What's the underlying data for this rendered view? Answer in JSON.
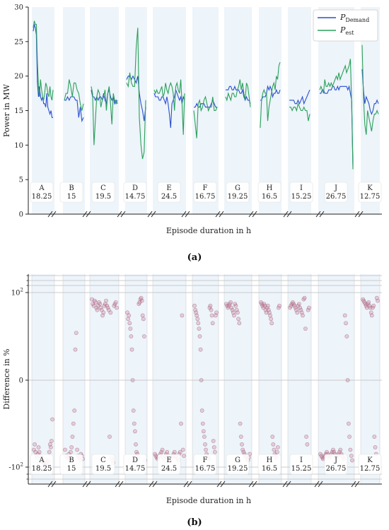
{
  "chart_data": [
    {
      "panel_label": "(a)",
      "type": "line",
      "xlabel": "Episode duration in h",
      "ylabel": "Power in MW",
      "ylim": [
        0,
        30
      ],
      "yticks": [
        "0",
        "5",
        "10",
        "15",
        "20",
        "25",
        "30"
      ],
      "legend_position": "top-right",
      "legend": [
        {
          "name_main": "P",
          "name_sub": "Demand",
          "color": "#2a4fcf"
        },
        {
          "name_main": "P",
          "name_sub": "est",
          "color": "#2ca05a"
        }
      ],
      "episodes": [
        {
          "label": "A",
          "duration": "18.25",
          "demand": [
            26.5,
            27.5,
            27,
            26,
            19,
            17,
            18.5,
            17,
            16.5,
            17,
            16,
            16,
            15.5,
            17.5,
            15.5,
            15,
            14.5,
            15,
            14,
            14
          ],
          "estimate": [
            27,
            28,
            27.5,
            27.5,
            22,
            18.5,
            17,
            19.5,
            18,
            17,
            16.5,
            17.5,
            19,
            18.5,
            17.5,
            17,
            18.5,
            17,
            16.5,
            18
          ]
        },
        {
          "label": "B",
          "duration": "15",
          "demand": [
            16.5,
            16.5,
            17,
            16.5,
            17,
            17,
            17,
            16.5,
            16.5,
            14,
            15.5,
            13.5,
            14
          ],
          "estimate": [
            16.5,
            17.5,
            17.5,
            19.5,
            18.5,
            17,
            19,
            19,
            18,
            17.5,
            16,
            15,
            16
          ]
        },
        {
          "label": "C",
          "duration": "19.5",
          "demand": [
            18,
            17,
            17,
            16.5,
            17,
            16.5,
            17,
            17,
            16.5,
            17.5,
            16.5,
            16,
            17.5,
            18,
            17,
            16.5,
            17,
            16,
            16.5,
            16
          ],
          "estimate": [
            18.5,
            17.5,
            10,
            13.5,
            17,
            18,
            17.5,
            15.5,
            16.5,
            17,
            18,
            15,
            17.5,
            18.5,
            16,
            13,
            17.5,
            16.5,
            16,
            16.5
          ]
        },
        {
          "label": "D",
          "duration": "14.75",
          "demand": [
            19.5,
            20,
            20,
            19.5,
            20,
            19.5,
            19,
            20,
            17.5,
            16,
            15,
            13.5,
            15.5
          ],
          "estimate": [
            19,
            18.5,
            20.5,
            19,
            18.5,
            18.5,
            24,
            27,
            14,
            10,
            8,
            9,
            16.5
          ]
        },
        {
          "label": "E",
          "duration": "24.5",
          "demand": [
            17.5,
            17,
            17,
            17,
            16.5,
            16.5,
            17,
            17,
            16.5,
            16,
            17,
            16,
            14.5,
            12.5,
            16,
            16.5,
            17,
            18,
            17.5,
            17,
            16.5,
            17,
            16,
            17,
            16.5
          ],
          "estimate": [
            18,
            17.5,
            18,
            17.5,
            17.5,
            18,
            18.5,
            17,
            17.5,
            19,
            18,
            17.5,
            18.5,
            19,
            18.5,
            17.5,
            15,
            18.5,
            19,
            18,
            17.5,
            19.5,
            16,
            11.5,
            17.5
          ]
        },
        {
          "label": "F",
          "duration": "16.75",
          "demand": [
            15.5,
            15.5,
            16,
            15.5,
            15.5,
            16,
            16,
            16,
            15.5,
            15.5,
            15.5,
            15.5,
            16,
            16.5,
            16,
            15.5,
            15.5
          ],
          "estimate": [
            15,
            13,
            11,
            16,
            16.5,
            15,
            15.5,
            16.5,
            17,
            16,
            15,
            15.5,
            15.5,
            17,
            15,
            15,
            15.5
          ]
        },
        {
          "label": "G",
          "duration": "19.25",
          "demand": [
            18,
            18,
            18,
            18.5,
            18.5,
            18,
            18,
            18.5,
            18,
            18,
            18,
            17.5,
            17.5,
            18,
            17,
            16.5,
            17,
            16.5,
            16.5,
            16
          ],
          "estimate": [
            17,
            16.5,
            17.5,
            17,
            16.5,
            17.5,
            17.5,
            17,
            17,
            18,
            18.5,
            19.5,
            18,
            19,
            17.5,
            16.5,
            19,
            18.5,
            17,
            15.5
          ]
        },
        {
          "label": "H",
          "duration": "16.5",
          "demand": [
            16.5,
            16.5,
            17,
            17,
            17,
            17.5,
            18.5,
            18,
            18.5,
            18,
            17,
            17.5,
            17.5,
            18,
            17.5,
            17.5,
            18
          ],
          "estimate": [
            12.5,
            16.5,
            17.5,
            18,
            17.5,
            17.5,
            13.5,
            15.5,
            16.5,
            17.5,
            18.5,
            19,
            18,
            20,
            19.5,
            21.5,
            22
          ]
        },
        {
          "label": "I",
          "duration": "15.25",
          "demand": [
            16.5,
            16.5,
            16.5,
            16.5,
            16,
            16,
            16.5,
            16,
            16.5,
            17,
            16,
            16.5,
            17,
            17.5,
            18
          ],
          "estimate": [
            15.5,
            15.5,
            15,
            15.5,
            15.5,
            15,
            16,
            15.5,
            15,
            15,
            15.5,
            15,
            15,
            13.5,
            14.5
          ]
        },
        {
          "label": "J",
          "duration": "26.75",
          "demand": [
            17.5,
            17.5,
            18,
            18,
            17.5,
            17.5,
            17.5,
            18,
            18,
            18,
            18.5,
            18.5,
            18,
            18,
            18.5,
            18,
            18.5,
            18.5,
            18.5,
            18.5,
            18.5,
            18.5,
            18,
            18.5,
            17.5,
            16.5,
            7
          ],
          "estimate": [
            18,
            18.5,
            18,
            17.5,
            19.5,
            18.5,
            18.5,
            19,
            18.5,
            19,
            18.5,
            19,
            19.5,
            20,
            19.5,
            20.5,
            19.5,
            20,
            20.5,
            21,
            21.5,
            20.5,
            21,
            21.5,
            22.5,
            16,
            6.5
          ]
        },
        {
          "label": "K",
          "duration": "12.75",
          "demand": [
            21,
            18,
            16,
            17,
            16.5,
            16,
            15,
            14.5,
            15,
            16,
            16,
            16.5,
            16
          ],
          "estimate": [
            24.5,
            17,
            13,
            11.5,
            15,
            14,
            13,
            12,
            13.5,
            14.5,
            14.5,
            15,
            14.5
          ]
        }
      ]
    },
    {
      "panel_label": "(b)",
      "type": "scatter",
      "xlabel": "Episode duration in h",
      "ylabel": "Difference in %",
      "yscale": "symlog",
      "yticks": [
        "-10",
        "0",
        "10"
      ],
      "ytick_exponent": "2",
      "point_color": "#e07aa0",
      "episodes": [
        {
          "label": "A",
          "duration": "18.25",
          "values": [
            -40,
            -30,
            -45,
            -55,
            -60,
            -50,
            -35,
            -45,
            -55,
            -65,
            -70,
            -60,
            -75,
            -80,
            -85,
            -90,
            -80,
            -70,
            -95,
            -75,
            -45,
            -30,
            -35,
            -25,
            -8
          ]
        },
        {
          "label": "B",
          "duration": "15",
          "values": [
            -40,
            -55,
            -60,
            -65,
            -50,
            -60,
            -45,
            -35,
            -20,
            -10,
            -5,
            5,
            12,
            -40,
            -55,
            -60,
            -70,
            -50,
            -55,
            -65
          ]
        },
        {
          "label": "C",
          "duration": "19.5",
          "values": [
            70,
            55,
            50,
            65,
            60,
            45,
            40,
            50,
            60,
            55,
            45,
            40,
            30,
            35,
            50,
            55,
            65,
            50,
            45,
            40,
            -20,
            35,
            -60,
            -70,
            -80,
            50,
            55,
            60,
            45
          ]
        },
        {
          "label": "D",
          "duration": "14.75",
          "values": [
            35,
            25,
            30,
            20,
            15,
            10,
            5,
            0,
            -5,
            -10,
            -15,
            -30,
            -45,
            -50,
            -60,
            55,
            60,
            70,
            75,
            65,
            30,
            25,
            10,
            -70
          ]
        },
        {
          "label": "E",
          "duration": "24.5",
          "values": [
            -50,
            -55,
            -60,
            -65,
            -60,
            -55,
            -50,
            -45,
            -40,
            -60,
            -65,
            -55,
            -50,
            -45,
            -60,
            -55,
            -65,
            -70,
            -60,
            -55,
            -50,
            -45,
            -55,
            -60,
            -65,
            -70,
            -50,
            -45,
            -10,
            30,
            -40,
            -55
          ]
        },
        {
          "label": "F",
          "duration": "16.75",
          "values": [
            50,
            40,
            35,
            30,
            25,
            20,
            15,
            10,
            5,
            0,
            -5,
            -10,
            -15,
            -20,
            -30,
            -40,
            -50,
            -55,
            -60,
            -65,
            45,
            50,
            40,
            30,
            20,
            -25,
            -35,
            -45,
            30,
            35
          ]
        },
        {
          "label": "G",
          "duration": "19.25",
          "values": [
            55,
            50,
            45,
            50,
            55,
            60,
            45,
            40,
            35,
            30,
            55,
            50,
            40,
            35,
            25,
            20,
            -10,
            -20,
            -30,
            -40,
            -45,
            -50,
            -55,
            -60,
            -65,
            -70,
            -60,
            -50
          ]
        },
        {
          "label": "H",
          "duration": "16.5",
          "values": [
            60,
            55,
            50,
            45,
            55,
            50,
            40,
            35,
            45,
            50,
            40,
            35,
            30,
            25,
            20,
            -20,
            -30,
            -40,
            -50,
            -55,
            -60,
            -45,
            -35,
            45,
            50
          ]
        },
        {
          "label": "I",
          "duration": "15.25",
          "values": [
            45,
            50,
            55,
            60,
            55,
            50,
            45,
            40,
            35,
            50,
            55,
            45,
            40,
            35,
            30,
            70,
            75,
            15,
            -20,
            -30,
            40,
            45
          ]
        },
        {
          "label": "J",
          "duration": "26.75",
          "values": [
            -50,
            -55,
            -60,
            -65,
            -60,
            -55,
            -50,
            -45,
            -50,
            -55,
            -60,
            -55,
            -50,
            -45,
            -40,
            -45,
            -50,
            -55,
            -60,
            -55,
            -50,
            -45,
            -40,
            -50,
            -55,
            -60,
            -65,
            30,
            20,
            10,
            0,
            -10,
            -20,
            -40,
            -55,
            -70
          ]
        },
        {
          "label": "K",
          "duration": "12.75",
          "values": [
            70,
            65,
            60,
            55,
            50,
            45,
            55,
            60,
            50,
            45,
            35,
            30,
            45,
            50,
            -20,
            -35,
            -50,
            75,
            65
          ]
        }
      ]
    }
  ]
}
